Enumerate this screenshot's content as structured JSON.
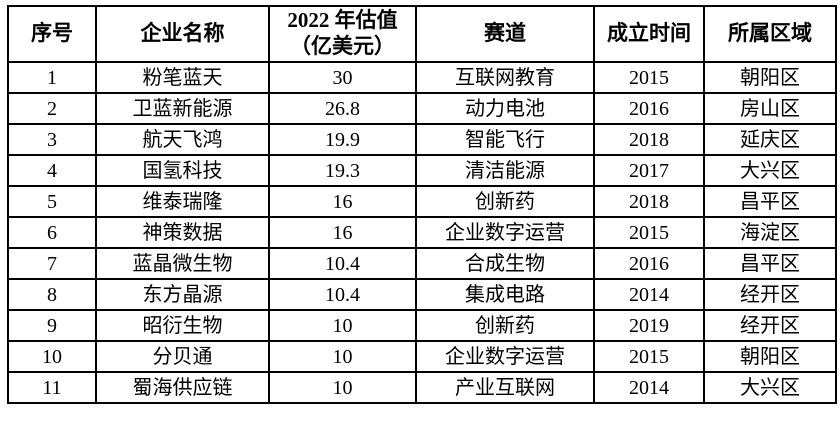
{
  "colors": {
    "background": "#ffffff",
    "border": "#000000",
    "text": "#000000"
  },
  "table": {
    "columns": [
      {
        "key": "index",
        "label": "序号"
      },
      {
        "key": "company",
        "label": "企业名称"
      },
      {
        "key": "valuation",
        "label": "2022 年估值\n（亿美元）"
      },
      {
        "key": "track",
        "label": "赛道"
      },
      {
        "key": "founded",
        "label": "成立时间"
      },
      {
        "key": "district",
        "label": "所属区域"
      }
    ],
    "rows": [
      [
        "1",
        "粉笔蓝天",
        "30",
        "互联网教育",
        "2015",
        "朝阳区"
      ],
      [
        "2",
        "卫蓝新能源",
        "26.8",
        "动力电池",
        "2016",
        "房山区"
      ],
      [
        "3",
        "航天飞鸿",
        "19.9",
        "智能飞行",
        "2018",
        "延庆区"
      ],
      [
        "4",
        "国氢科技",
        "19.3",
        "清洁能源",
        "2017",
        "大兴区"
      ],
      [
        "5",
        "维泰瑞隆",
        "16",
        "创新药",
        "2018",
        "昌平区"
      ],
      [
        "6",
        "神策数据",
        "16",
        "企业数字运营",
        "2015",
        "海淀区"
      ],
      [
        "7",
        "蓝晶微生物",
        "10.4",
        "合成生物",
        "2016",
        "昌平区"
      ],
      [
        "8",
        "东方晶源",
        "10.4",
        "集成电路",
        "2014",
        "经开区"
      ],
      [
        "9",
        "昭衍生物",
        "10",
        "创新药",
        "2019",
        "经开区"
      ],
      [
        "10",
        "分贝通",
        "10",
        "企业数字运营",
        "2015",
        "朝阳区"
      ],
      [
        "11",
        "蜀海供应链",
        "10",
        "产业互联网",
        "2014",
        "大兴区"
      ]
    ]
  }
}
